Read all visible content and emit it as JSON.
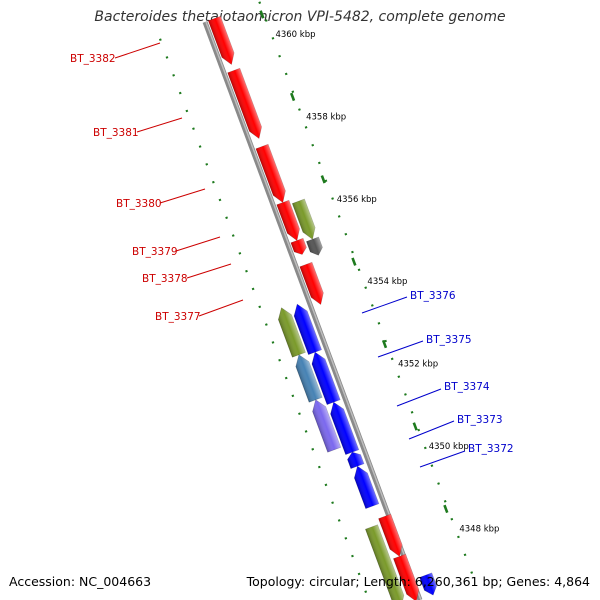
{
  "title": "Bacteroides thetaiotaomicron VPI-5482, complete genome",
  "accession_text": "Accession: NC_004663",
  "info_text": "Topology: circular; Length: 6,260,361 bp; Genes: 4,864",
  "colors": {
    "backbone": "#8a8a8a",
    "red": "#ff0000",
    "blue": "#0000ff",
    "olive": "#7a9a2a",
    "gray": "#555555",
    "steelblue": "#4682b4",
    "slateblue": "#7b68ee",
    "tick": "#1e7a1e",
    "red_label": "#cc0000",
    "blue_label": "#0000cc",
    "kbp_label": "#000000"
  },
  "scale_labels": [
    {
      "kbp": 4360,
      "text": "4360 kbp"
    },
    {
      "kbp": 4358,
      "text": "4358 kbp"
    },
    {
      "kbp": 4356,
      "text": "4356 kbp"
    },
    {
      "kbp": 4354,
      "text": "4354 kbp"
    },
    {
      "kbp": 4352,
      "text": "4352 kbp"
    },
    {
      "kbp": 4350,
      "text": "4350 kbp"
    },
    {
      "kbp": 4348,
      "text": "4348 kbp"
    }
  ],
  "left_genes": [
    {
      "name": "BT_3382"
    },
    {
      "name": "BT_3381"
    },
    {
      "name": "BT_3380"
    },
    {
      "name": "BT_3379"
    },
    {
      "name": "BT_3378"
    },
    {
      "name": "BT_3377"
    }
  ],
  "right_genes": [
    {
      "name": "BT_3376"
    },
    {
      "name": "BT_3375"
    },
    {
      "name": "BT_3374"
    },
    {
      "name": "BT_3373"
    },
    {
      "name": "BT_3372"
    }
  ]
}
